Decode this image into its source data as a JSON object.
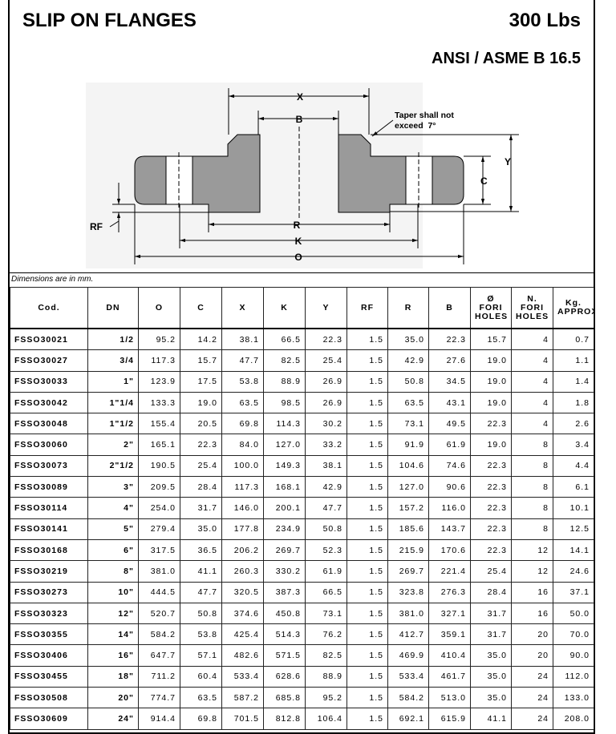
{
  "header": {
    "title": "SLIP ON FLANGES",
    "rating": "300 Lbs",
    "standard": "ANSI / ASME B 16.5"
  },
  "drawing": {
    "labels": {
      "x": "X",
      "b": "B",
      "y": "Y",
      "c": "C",
      "rf": "RF",
      "r": "R",
      "k": "K",
      "o": "O"
    },
    "note": [
      "Taper shall not",
      "exceed  7°"
    ]
  },
  "note": "Dimensions are in mm.",
  "table": {
    "columns": [
      [
        "Cod."
      ],
      [
        "DN"
      ],
      [
        "O"
      ],
      [
        "C"
      ],
      [
        "X"
      ],
      [
        "K"
      ],
      [
        "Y"
      ],
      [
        "RF"
      ],
      [
        "R"
      ],
      [
        "B"
      ],
      [
        "Ø",
        "FORI",
        "HOLES"
      ],
      [
        "N.",
        "FORI",
        "HOLES"
      ],
      [
        "Kg.",
        "APPROX"
      ]
    ],
    "rows": [
      [
        "FSSO30021",
        "1/2",
        "95.2",
        "14.2",
        "38.1",
        "66.5",
        "22.3",
        "1.5",
        "35.0",
        "22.3",
        "15.7",
        "4",
        "0.7"
      ],
      [
        "FSSO30027",
        "3/4",
        "117.3",
        "15.7",
        "47.7",
        "82.5",
        "25.4",
        "1.5",
        "42.9",
        "27.6",
        "19.0",
        "4",
        "1.1"
      ],
      [
        "FSSO30033",
        "1\"",
        "123.9",
        "17.5",
        "53.8",
        "88.9",
        "26.9",
        "1.5",
        "50.8",
        "34.5",
        "19.0",
        "4",
        "1.4"
      ],
      [
        "FSSO30042",
        "1\"1/4",
        "133.3",
        "19.0",
        "63.5",
        "98.5",
        "26.9",
        "1.5",
        "63.5",
        "43.1",
        "19.0",
        "4",
        "1.8"
      ],
      [
        "FSSO30048",
        "1\"1/2",
        "155.4",
        "20.5",
        "69.8",
        "114.3",
        "30.2",
        "1.5",
        "73.1",
        "49.5",
        "22.3",
        "4",
        "2.6"
      ],
      [
        "FSSO30060",
        "2\"",
        "165.1",
        "22.3",
        "84.0",
        "127.0",
        "33.2",
        "1.5",
        "91.9",
        "61.9",
        "19.0",
        "8",
        "3.4"
      ],
      [
        "FSSO30073",
        "2\"1/2",
        "190.5",
        "25.4",
        "100.0",
        "149.3",
        "38.1",
        "1.5",
        "104.6",
        "74.6",
        "22.3",
        "8",
        "4.4"
      ],
      [
        "FSSO30089",
        "3\"",
        "209.5",
        "28.4",
        "117.3",
        "168.1",
        "42.9",
        "1.5",
        "127.0",
        "90.6",
        "22.3",
        "8",
        "6.1"
      ],
      [
        "FSSO30114",
        "4\"",
        "254.0",
        "31.7",
        "146.0",
        "200.1",
        "47.7",
        "1.5",
        "157.2",
        "116.0",
        "22.3",
        "8",
        "10.1"
      ],
      [
        "FSSO30141",
        "5\"",
        "279.4",
        "35.0",
        "177.8",
        "234.9",
        "50.8",
        "1.5",
        "185.6",
        "143.7",
        "22.3",
        "8",
        "12.5"
      ],
      [
        "FSSO30168",
        "6\"",
        "317.5",
        "36.5",
        "206.2",
        "269.7",
        "52.3",
        "1.5",
        "215.9",
        "170.6",
        "22.3",
        "12",
        "14.1"
      ],
      [
        "FSSO30219",
        "8\"",
        "381.0",
        "41.1",
        "260.3",
        "330.2",
        "61.9",
        "1.5",
        "269.7",
        "221.4",
        "25.4",
        "12",
        "24.6"
      ],
      [
        "FSSO30273",
        "10\"",
        "444.5",
        "47.7",
        "320.5",
        "387.3",
        "66.5",
        "1.5",
        "323.8",
        "276.3",
        "28.4",
        "16",
        "37.1"
      ],
      [
        "FSSO30323",
        "12\"",
        "520.7",
        "50.8",
        "374.6",
        "450.8",
        "73.1",
        "1.5",
        "381.0",
        "327.1",
        "31.7",
        "16",
        "50.0"
      ],
      [
        "FSSO30355",
        "14\"",
        "584.2",
        "53.8",
        "425.4",
        "514.3",
        "76.2",
        "1.5",
        "412.7",
        "359.1",
        "31.7",
        "20",
        "70.0"
      ],
      [
        "FSSO30406",
        "16\"",
        "647.7",
        "57.1",
        "482.6",
        "571.5",
        "82.5",
        "1.5",
        "469.9",
        "410.4",
        "35.0",
        "20",
        "90.0"
      ],
      [
        "FSSO30455",
        "18\"",
        "711.2",
        "60.4",
        "533.4",
        "628.6",
        "88.9",
        "1.5",
        "533.4",
        "461.7",
        "35.0",
        "24",
        "112.0"
      ],
      [
        "FSSO30508",
        "20\"",
        "774.7",
        "63.5",
        "587.2",
        "685.8",
        "95.2",
        "1.5",
        "584.2",
        "513.0",
        "35.0",
        "24",
        "133.0"
      ],
      [
        "FSSO30609",
        "24\"",
        "914.4",
        "69.8",
        "701.5",
        "812.8",
        "106.4",
        "1.5",
        "692.1",
        "615.9",
        "41.1",
        "24",
        "208.0"
      ]
    ]
  }
}
